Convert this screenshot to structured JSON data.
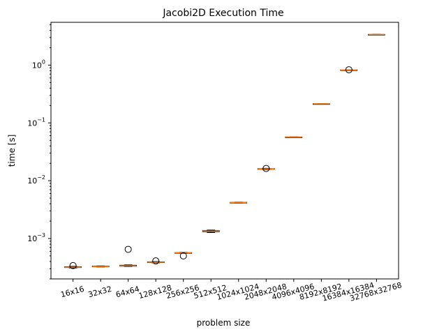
{
  "chart_data": {
    "type": "box",
    "title": "Jacobi2D Execution Time",
    "xlabel": "problem size",
    "ylabel": "time [s]",
    "yscale": "log",
    "ylim": [
      0.0002,
      5.5
    ],
    "yticks": [
      {
        "value": 0.001,
        "base": "10",
        "exp": "−3"
      },
      {
        "value": 0.01,
        "base": "10",
        "exp": "−2"
      },
      {
        "value": 0.1,
        "base": "10",
        "exp": "−1"
      },
      {
        "value": 1,
        "base": "10",
        "exp": "0"
      }
    ],
    "categories": [
      "16x16",
      "32x32",
      "64x64",
      "128x128",
      "256x256",
      "512x512",
      "1024x1024",
      "2048x2048",
      "4096x4096",
      "8192x8192",
      "16384x16384",
      "32768x32768"
    ],
    "boxes": [
      {
        "q1": 0.000315,
        "median": 0.00032,
        "q3": 0.000325,
        "whisker_low": 0.00031,
        "whisker_high": 0.00033,
        "outliers": [
          0.00034
        ]
      },
      {
        "q1": 0.000325,
        "median": 0.000328,
        "q3": 0.000333,
        "whisker_low": 0.000322,
        "whisker_high": 0.000336,
        "outliers": []
      },
      {
        "q1": 0.000332,
        "median": 0.000337,
        "q3": 0.000345,
        "whisker_low": 0.000328,
        "whisker_high": 0.00035,
        "outliers": [
          0.00065
        ]
      },
      {
        "q1": 0.000385,
        "median": 0.00039,
        "q3": 0.000395,
        "whisker_low": 0.00038,
        "whisker_high": 0.0004,
        "outliers": [
          0.00041
        ]
      },
      {
        "q1": 0.00056,
        "median": 0.000565,
        "q3": 0.00057,
        "whisker_low": 0.000555,
        "whisker_high": 0.000575,
        "outliers": [
          0.0005
        ]
      },
      {
        "q1": 0.00131,
        "median": 0.00134,
        "q3": 0.00137,
        "whisker_low": 0.00127,
        "whisker_high": 0.0014,
        "outliers": []
      },
      {
        "q1": 0.00413,
        "median": 0.00418,
        "q3": 0.00422,
        "whisker_low": 0.0041,
        "whisker_high": 0.00425,
        "outliers": []
      },
      {
        "q1": 0.0158,
        "median": 0.016,
        "q3": 0.0162,
        "whisker_low": 0.0156,
        "whisker_high": 0.0164,
        "outliers": [
          0.0163
        ]
      },
      {
        "q1": 0.0568,
        "median": 0.057,
        "q3": 0.0572,
        "whisker_low": 0.0565,
        "whisker_high": 0.0575,
        "outliers": []
      },
      {
        "q1": 0.213,
        "median": 0.214,
        "q3": 0.215,
        "whisker_low": 0.212,
        "whisker_high": 0.216,
        "outliers": []
      },
      {
        "q1": 0.82,
        "median": 0.825,
        "q3": 0.83,
        "whisker_low": 0.815,
        "whisker_high": 0.835,
        "outliers": [
          0.83
        ]
      },
      {
        "q1": 3.36,
        "median": 3.38,
        "q3": 3.4,
        "whisker_low": 3.34,
        "whisker_high": 3.42,
        "outliers": []
      }
    ],
    "colors": {
      "box": "#000000",
      "median": "#ff7f0e",
      "outlier": "#000000",
      "axes": "#000000",
      "background": "#ffffff"
    },
    "grid": false,
    "legend": "none"
  }
}
